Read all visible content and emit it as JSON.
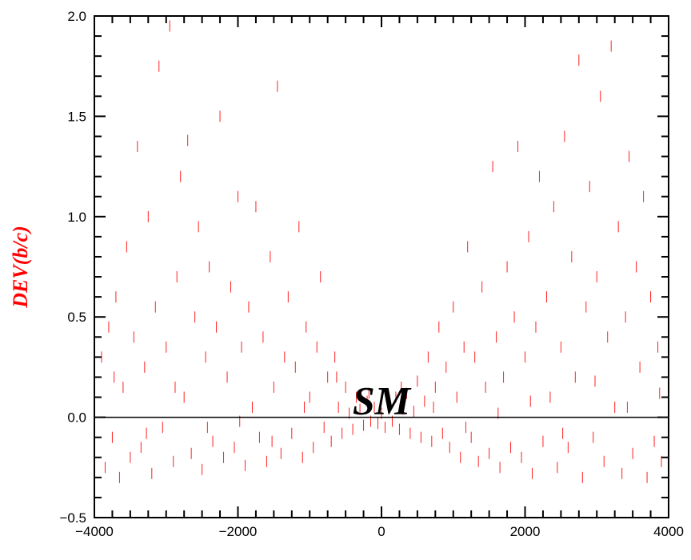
{
  "chart_data": {
    "type": "scatter",
    "title": "",
    "xlabel": "",
    "ylabel": "DEV(b/c)",
    "xlim": [
      -4000,
      4000
    ],
    "ylim": [
      -0.5,
      2.0
    ],
    "x_ticks": [
      -4000,
      -2000,
      0,
      2000,
      4000
    ],
    "x_tick_labels": [
      "−4000",
      "−2000",
      "0",
      "2000",
      "4000"
    ],
    "y_ticks": [
      -0.5,
      0.0,
      0.5,
      1.0,
      1.5,
      2.0
    ],
    "y_tick_labels": [
      "−0.5",
      "0.0",
      "0.5",
      "1.0",
      "1.5",
      "2.0"
    ],
    "grid": false,
    "reference_line": {
      "y": 0.0,
      "label": "SM"
    },
    "annotation": "SM",
    "colors": {
      "points": "#ff2020",
      "ylabel": "#ff0000",
      "axes": "#000000",
      "reference_line": "#000000"
    },
    "series": [
      {
        "marker": "vertical-dash",
        "points": [
          [
            -3900,
            0.3
          ],
          [
            -3850,
            -0.25
          ],
          [
            -3800,
            0.45
          ],
          [
            -3750,
            -0.1
          ],
          [
            -3700,
            0.6
          ],
          [
            -3650,
            -0.3
          ],
          [
            -3600,
            0.15
          ],
          [
            -3550,
            0.85
          ],
          [
            -3500,
            -0.2
          ],
          [
            -3450,
            0.4
          ],
          [
            -3400,
            1.35
          ],
          [
            -3350,
            -0.15
          ],
          [
            -3300,
            0.25
          ],
          [
            -3250,
            1.0
          ],
          [
            -3200,
            -0.28
          ],
          [
            -3150,
            0.55
          ],
          [
            -3100,
            1.75
          ],
          [
            -3050,
            -0.05
          ],
          [
            -3000,
            0.35
          ],
          [
            -2950,
            1.95
          ],
          [
            -2900,
            -0.22
          ],
          [
            -2850,
            0.7
          ],
          [
            -2800,
            1.2
          ],
          [
            -2750,
            0.1
          ],
          [
            -2700,
            1.38
          ],
          [
            -2650,
            -0.18
          ],
          [
            -2600,
            0.5
          ],
          [
            -2550,
            0.95
          ],
          [
            -2500,
            -0.26
          ],
          [
            -2450,
            0.3
          ],
          [
            -2400,
            0.75
          ],
          [
            -2350,
            -0.12
          ],
          [
            -2300,
            0.45
          ],
          [
            -2250,
            1.5
          ],
          [
            -2200,
            -0.2
          ],
          [
            -2150,
            0.2
          ],
          [
            -2100,
            0.65
          ],
          [
            -2050,
            -0.15
          ],
          [
            -2000,
            1.1
          ],
          [
            -1950,
            0.35
          ],
          [
            -1900,
            -0.24
          ],
          [
            -1850,
            0.55
          ],
          [
            -1800,
            0.05
          ],
          [
            -1750,
            1.05
          ],
          [
            -1700,
            -0.1
          ],
          [
            -1650,
            0.4
          ],
          [
            -1600,
            -0.22
          ],
          [
            -1550,
            0.8
          ],
          [
            -1500,
            0.15
          ],
          [
            -1450,
            1.65
          ],
          [
            -1400,
            -0.18
          ],
          [
            -1350,
            0.3
          ],
          [
            -1300,
            0.6
          ],
          [
            -1250,
            -0.08
          ],
          [
            -1200,
            0.25
          ],
          [
            -1150,
            0.95
          ],
          [
            -1100,
            -0.2
          ],
          [
            -1050,
            0.45
          ],
          [
            -1000,
            0.1
          ],
          [
            -950,
            -0.15
          ],
          [
            -900,
            0.35
          ],
          [
            -850,
            0.7
          ],
          [
            -800,
            -0.05
          ],
          [
            -750,
            0.2
          ],
          [
            -700,
            -0.12
          ],
          [
            -650,
            0.3
          ],
          [
            -600,
            0.05
          ],
          [
            -550,
            -0.08
          ],
          [
            -500,
            0.15
          ],
          [
            -450,
            0.02
          ],
          [
            -400,
            -0.06
          ],
          [
            -350,
            0.1
          ],
          [
            -300,
            0.04
          ],
          [
            -250,
            -0.04
          ],
          [
            -200,
            0.08
          ],
          [
            -150,
            -0.02
          ],
          [
            -100,
            0.05
          ],
          [
            -50,
            -0.03
          ],
          [
            0,
            0.02
          ],
          [
            50,
            -0.05
          ],
          [
            100,
            0.06
          ],
          [
            150,
            -0.02
          ],
          [
            200,
            0.1
          ],
          [
            250,
            -0.06
          ],
          [
            300,
            0.04
          ],
          [
            350,
            0.12
          ],
          [
            400,
            -0.08
          ],
          [
            450,
            0.03
          ],
          [
            500,
            0.18
          ],
          [
            550,
            -0.1
          ],
          [
            600,
            0.08
          ],
          [
            650,
            0.3
          ],
          [
            700,
            -0.12
          ],
          [
            750,
            0.15
          ],
          [
            800,
            0.45
          ],
          [
            850,
            -0.08
          ],
          [
            900,
            0.25
          ],
          [
            950,
            -0.15
          ],
          [
            1000,
            0.55
          ],
          [
            1050,
            0.1
          ],
          [
            1100,
            -0.2
          ],
          [
            1150,
            0.35
          ],
          [
            1200,
            0.85
          ],
          [
            1250,
            -0.1
          ],
          [
            1300,
            0.3
          ],
          [
            1350,
            -0.22
          ],
          [
            1400,
            0.65
          ],
          [
            1450,
            0.15
          ],
          [
            1500,
            -0.18
          ],
          [
            1550,
            1.25
          ],
          [
            1600,
            0.4
          ],
          [
            1650,
            -0.25
          ],
          [
            1700,
            0.2
          ],
          [
            1750,
            0.75
          ],
          [
            1800,
            -0.15
          ],
          [
            1850,
            0.5
          ],
          [
            1900,
            1.35
          ],
          [
            1950,
            -0.2
          ],
          [
            2000,
            0.3
          ],
          [
            2050,
            0.9
          ],
          [
            2100,
            -0.28
          ],
          [
            2150,
            0.45
          ],
          [
            2200,
            1.2
          ],
          [
            2250,
            -0.12
          ],
          [
            2300,
            0.6
          ],
          [
            2350,
            0.1
          ],
          [
            2400,
            1.05
          ],
          [
            2450,
            -0.25
          ],
          [
            2500,
            0.35
          ],
          [
            2550,
            1.4
          ],
          [
            2600,
            -0.15
          ],
          [
            2650,
            0.8
          ],
          [
            2700,
            0.2
          ],
          [
            2750,
            1.78
          ],
          [
            2800,
            -0.3
          ],
          [
            2850,
            0.55
          ],
          [
            2900,
            1.15
          ],
          [
            2950,
            -0.1
          ],
          [
            3000,
            0.7
          ],
          [
            3050,
            1.6
          ],
          [
            3100,
            -0.22
          ],
          [
            3150,
            0.4
          ],
          [
            3200,
            1.85
          ],
          [
            3250,
            0.05
          ],
          [
            3300,
            0.95
          ],
          [
            3350,
            -0.28
          ],
          [
            3400,
            0.5
          ],
          [
            3450,
            1.3
          ],
          [
            3500,
            -0.18
          ],
          [
            3550,
            0.75
          ],
          [
            3600,
            0.25
          ],
          [
            3650,
            1.1
          ],
          [
            3700,
            -0.3
          ],
          [
            3750,
            0.6
          ],
          [
            3800,
            -0.12
          ],
          [
            3850,
            0.35
          ],
          [
            3900,
            -0.22
          ],
          [
            -3725,
            0.2
          ],
          [
            -3275,
            -0.08
          ],
          [
            -2875,
            0.15
          ],
          [
            -2425,
            -0.05
          ],
          [
            -1975,
            -0.02
          ],
          [
            -1525,
            -0.12
          ],
          [
            -1075,
            0.05
          ],
          [
            -625,
            0.2
          ],
          [
            -175,
            0.12
          ],
          [
            275,
            0.15
          ],
          [
            725,
            0.05
          ],
          [
            1175,
            -0.05
          ],
          [
            1625,
            0.02
          ],
          [
            2075,
            0.08
          ],
          [
            2525,
            -0.08
          ],
          [
            2975,
            0.18
          ],
          [
            3425,
            0.05
          ],
          [
            3875,
            0.12
          ]
        ]
      }
    ]
  }
}
